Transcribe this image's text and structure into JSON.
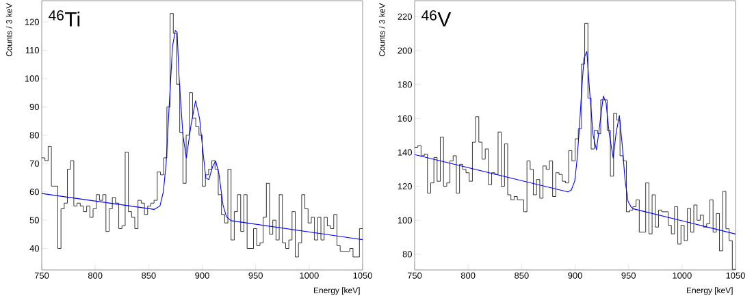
{
  "chart_data": [
    {
      "type": "histogram",
      "title": "$^{46}$Ti",
      "xlabel": "Energy [keV]",
      "ylabel": "Counts / 3 keV",
      "xlim": [
        750,
        1050
      ],
      "ylim": [
        32.4,
        127.5
      ],
      "xticks": [
        750,
        800,
        850,
        900,
        950,
        1000,
        1050
      ],
      "yticks": [
        40,
        50,
        60,
        70,
        80,
        90,
        100,
        110,
        120
      ],
      "series": [
        {
          "color": "#000000",
          "bins": [
            750,
            753,
            756,
            759,
            762,
            765,
            768,
            771,
            774,
            777,
            780,
            783,
            786,
            789,
            792,
            795,
            798,
            801,
            804,
            807,
            810,
            813,
            816,
            819,
            822,
            825,
            828,
            831,
            834,
            837,
            840,
            843,
            846,
            849,
            852,
            855,
            858,
            861,
            864,
            867,
            870,
            873,
            876,
            879,
            882,
            885,
            888,
            891,
            894,
            897,
            900,
            903,
            906,
            909,
            912,
            915,
            918,
            921,
            924,
            927,
            930,
            933,
            936,
            939,
            942,
            945,
            948,
            951,
            954,
            957,
            960,
            963,
            966,
            969,
            972,
            975,
            978,
            981,
            984,
            987,
            990,
            993,
            996,
            999,
            1002,
            1005,
            1008,
            1011,
            1014,
            1017,
            1020,
            1023,
            1026,
            1029,
            1032,
            1035,
            1038,
            1041,
            1044,
            1047,
            1050
          ],
          "values": [
            72,
            71,
            76,
            62,
            62,
            40,
            54,
            56,
            68,
            71,
            55,
            56,
            55,
            53,
            55,
            51,
            54,
            59,
            57,
            59,
            46,
            54,
            58,
            56,
            47,
            48,
            74,
            53,
            51,
            47,
            57,
            56,
            52,
            55,
            56,
            57,
            67,
            66,
            72,
            90,
            123,
            116,
            98,
            81,
            63,
            80,
            95,
            86,
            83,
            80,
            62,
            66,
            68,
            71,
            68,
            59,
            52,
            49,
            68,
            43,
            53,
            59,
            46,
            59,
            40,
            40,
            47,
            41,
            42,
            51,
            63,
            45,
            50,
            43,
            59,
            42,
            40,
            43,
            53,
            37,
            42,
            59,
            54,
            49,
            51,
            43,
            51,
            43,
            51,
            48,
            47,
            52,
            41,
            39,
            39,
            39,
            40,
            37,
            37,
            47
          ]
        },
        {
          "type": "line",
          "color": "#0000ff",
          "x": [
            750,
            855.2,
            860.5,
            863.7,
            866.3,
            869.1,
            872.3,
            874.9,
            876.6,
            878.3,
            882,
            885.2,
            889.5,
            893.8,
            897.6,
            900.2,
            903.4,
            906.2,
            909.8,
            912.6,
            915.6,
            919.5,
            922.7,
            927,
            1050
          ],
          "values": [
            59.4,
            53.8,
            55,
            60,
            70,
            90,
            111.5,
            117,
            116.3,
            101,
            80,
            72,
            83.4,
            92.2,
            85.8,
            76.1,
            64.9,
            64.3,
            68.9,
            70.9,
            66.5,
            55.3,
            51.2,
            49.8,
            43.1
          ]
        }
      ]
    },
    {
      "type": "histogram",
      "title": "$^{46}$V",
      "xlabel": "Energy [keV]",
      "ylabel": "Counts / 3 keV",
      "xlim": [
        750,
        1050
      ],
      "ylim": [
        70.7,
        229.4
      ],
      "xticks": [
        750,
        800,
        850,
        900,
        950,
        1000,
        1050
      ],
      "yticks": [
        80,
        100,
        120,
        140,
        160,
        180,
        200,
        220
      ],
      "series": [
        {
          "color": "#000000",
          "bins": [
            750,
            753,
            756,
            759,
            762,
            765,
            768,
            771,
            774,
            777,
            780,
            783,
            786,
            789,
            792,
            795,
            798,
            801,
            804,
            807,
            810,
            813,
            816,
            819,
            822,
            825,
            828,
            831,
            834,
            837,
            840,
            843,
            846,
            849,
            852,
            855,
            858,
            861,
            864,
            867,
            870,
            873,
            876,
            879,
            882,
            885,
            888,
            891,
            894,
            897,
            900,
            903,
            906,
            909,
            912,
            915,
            918,
            921,
            924,
            927,
            930,
            933,
            936,
            939,
            942,
            945,
            948,
            951,
            954,
            957,
            960,
            963,
            966,
            969,
            972,
            975,
            978,
            981,
            984,
            987,
            990,
            993,
            996,
            999,
            1002,
            1005,
            1008,
            1011,
            1014,
            1017,
            1020,
            1023,
            1026,
            1029,
            1032,
            1035,
            1038,
            1041,
            1044,
            1047,
            1050
          ],
          "values": [
            143,
            144,
            138,
            139,
            116,
            122,
            137,
            123,
            149,
            120,
            122,
            135,
            138,
            116,
            133,
            130,
            128,
            123,
            146,
            161,
            146,
            136,
            142,
            121,
            128,
            127,
            152,
            120,
            145,
            115,
            112,
            114,
            112,
            112,
            105,
            135,
            130,
            115,
            124,
            113,
            132,
            130,
            135,
            114,
            128,
            127,
            123,
            122,
            141,
            135,
            148,
            154,
            192,
            216,
            172,
            142,
            153,
            151,
            171,
            171,
            153,
            126,
            163,
            159,
            138,
            135,
            105,
            106,
            108,
            112,
            93,
            93,
            122,
            92,
            115,
            96,
            106,
            105,
            105,
            97,
            92,
            108,
            86,
            97,
            88,
            107,
            93,
            109,
            100,
            103,
            96,
            98,
            112,
            93,
            104,
            82,
            117,
            95,
            88,
            71
          ]
        },
        {
          "type": "line",
          "color": "#0000ff",
          "x": [
            750,
            893.3,
            896.5,
            899.7,
            901.8,
            904,
            906.1,
            908.3,
            911,
            913.6,
            916.8,
            920,
            923.2,
            926.4,
            929,
            931.8,
            935.6,
            938.4,
            941.4,
            944,
            946.8,
            949.5,
            952.5,
            954.7,
            1050
          ],
          "values": [
            138.7,
            116.7,
            117.8,
            123.2,
            135.4,
            154.3,
            175.9,
            195.4,
            199.5,
            175.9,
            150.2,
            141.4,
            157,
            173.2,
            169.1,
            151.6,
            136.7,
            151.6,
            161.7,
            144.8,
            123.2,
            111.1,
            107.7,
            106.7,
            91.9
          ]
        }
      ]
    }
  ]
}
